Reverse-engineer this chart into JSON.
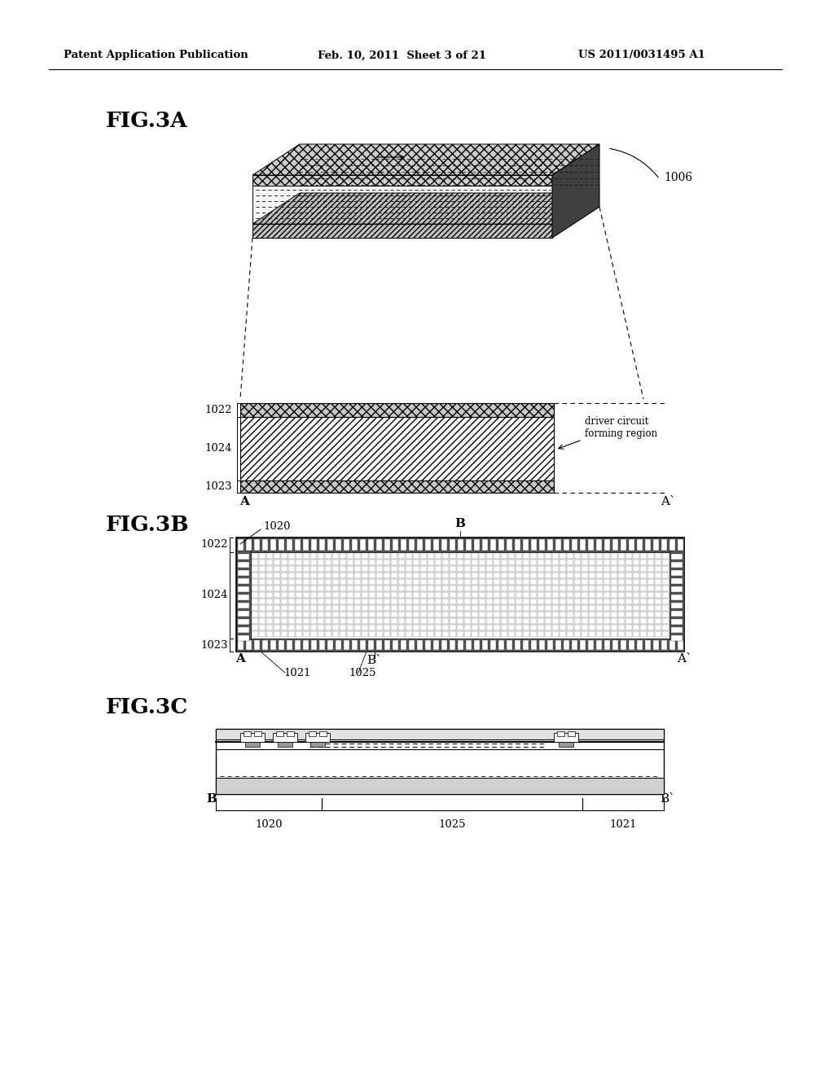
{
  "bg_color": "#ffffff",
  "header_left": "Patent Application Publication",
  "header_mid": "Feb. 10, 2011  Sheet 3 of 21",
  "header_right": "US 2011/0031495 A1",
  "fig3a_label": "FIG.3A",
  "fig3b_label": "FIG.3B",
  "fig3c_label": "FIG.3C",
  "label_1006": "1006",
  "label_1022": "1022",
  "label_1024": "1024",
  "label_1023": "1023",
  "label_A": "A",
  "label_Aprime": "A`",
  "label_B": "B",
  "label_Bprime": "B`",
  "label_1020": "1020",
  "label_1021": "1021",
  "label_1025": "1025",
  "label_driver": "driver circuit\nforming region",
  "text_color": "#000000",
  "line_color": "#000000"
}
